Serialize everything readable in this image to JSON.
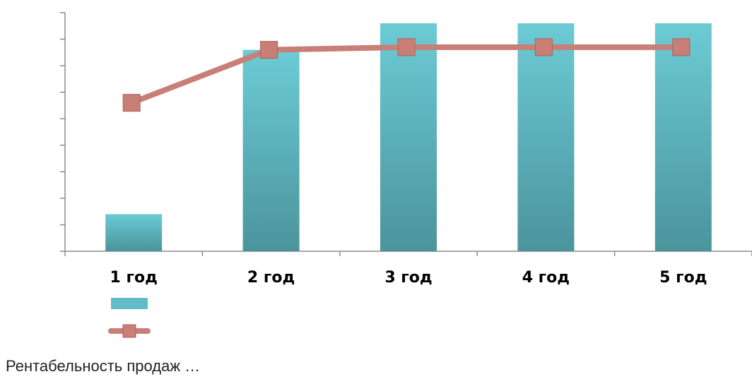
{
  "chart_data": {
    "type": "bar+line",
    "categories": [
      "1 год",
      "2 год",
      "3 год",
      "4 год",
      "5 год"
    ],
    "series": [
      {
        "kind": "bar",
        "values": [
          1.4,
          7.6,
          8.6,
          8.6,
          8.6
        ],
        "color": "#62bcc7"
      },
      {
        "kind": "line",
        "values": [
          5.6,
          7.6,
          7.7,
          7.7,
          7.7
        ],
        "color": "#c77f78"
      }
    ],
    "ylim": [
      0,
      9
    ],
    "yticks": [
      0,
      1,
      2,
      3,
      4,
      5,
      6,
      7,
      8,
      9
    ],
    "ytick_labels_visible": false,
    "grid": false,
    "legend": "bottom-left"
  },
  "caption": "Рентабельность продаж …"
}
